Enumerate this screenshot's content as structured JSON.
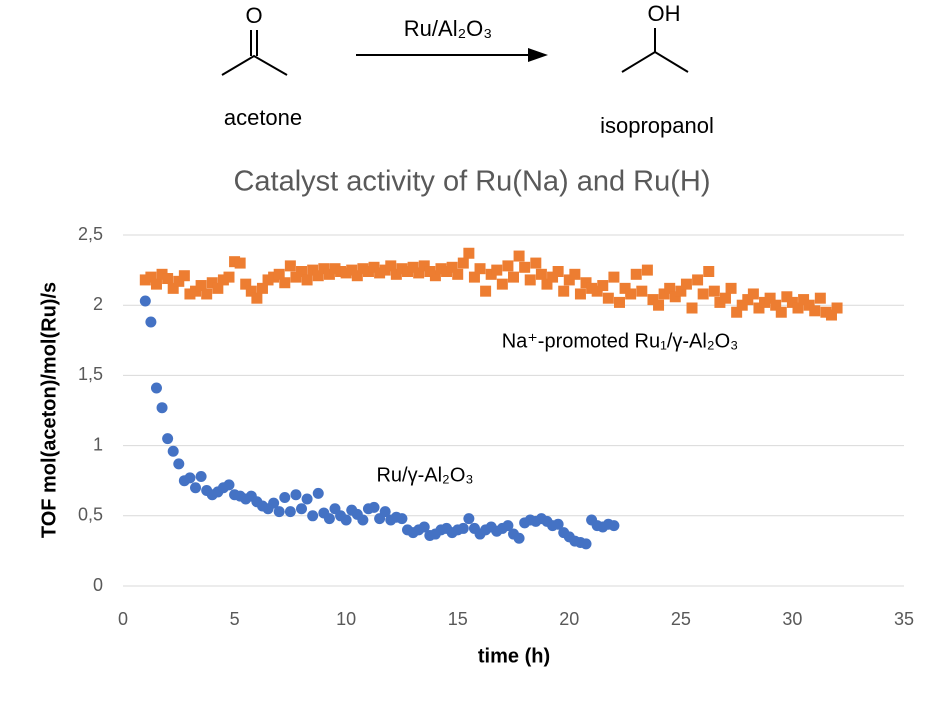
{
  "scheme": {
    "reactant_atom": "O",
    "reactant": "acetone",
    "catalyst": "Ru/Al₂O₃",
    "product_atom": "OH",
    "product": "isopropanol"
  },
  "chart_data": {
    "type": "scatter",
    "title": "Catalyst activity of Ru(Na) and Ru(H)",
    "x_label": "time (h)",
    "y_label": "TOF mol(aceton)/mol(Ru)/s",
    "xlim": [
      0,
      35
    ],
    "xticks": [
      0,
      5,
      10,
      15,
      20,
      25,
      30,
      35
    ],
    "ylim": [
      0,
      2.5
    ],
    "yticks": [
      0,
      {
        "value": 0.5,
        "label": "0,5"
      },
      1,
      {
        "value": 1.5,
        "label": "1,5"
      },
      2,
      {
        "value": 2.5,
        "label": "2,5"
      }
    ],
    "grid": true,
    "series": [
      {
        "name": "Na⁺-promoted  Ru₁/γ-Al₂O₃",
        "color": "#ed7d31",
        "marker": "square",
        "x": [
          1,
          1.25,
          1.5,
          1.75,
          2,
          2.25,
          2.5,
          2.75,
          3,
          3.25,
          3.5,
          3.75,
          4,
          4.25,
          4.5,
          4.75,
          5,
          5.25,
          5.5,
          5.75,
          6,
          6.25,
          6.5,
          6.75,
          7,
          7.25,
          7.5,
          7.75,
          8,
          8.25,
          8.5,
          8.75,
          9,
          9.25,
          9.5,
          9.75,
          10,
          10.25,
          10.5,
          10.75,
          11,
          11.25,
          11.5,
          11.75,
          12,
          12.25,
          12.5,
          12.75,
          13,
          13.25,
          13.5,
          13.75,
          14,
          14.25,
          14.5,
          14.75,
          15,
          15.25,
          15.5,
          15.75,
          16,
          16.25,
          16.5,
          16.75,
          17,
          17.25,
          17.5,
          17.75,
          18,
          18.25,
          18.5,
          18.75,
          19,
          19.25,
          19.5,
          19.75,
          20,
          20.25,
          20.5,
          20.75,
          21,
          21.25,
          21.5,
          21.75,
          22,
          22.25,
          22.5,
          22.75,
          23,
          23.25,
          23.5,
          23.75,
          24,
          24.25,
          24.5,
          24.75,
          25,
          25.25,
          25.5,
          25.75,
          26,
          26.25,
          26.5,
          26.75,
          27,
          27.25,
          27.5,
          27.75,
          28,
          28.25,
          28.5,
          28.75,
          29,
          29.25,
          29.5,
          29.75,
          30,
          30.25,
          30.5,
          30.75,
          31,
          31.25,
          31.5,
          31.75,
          32
        ],
        "values": [
          2.18,
          2.2,
          2.15,
          2.22,
          2.19,
          2.12,
          2.17,
          2.21,
          2.08,
          2.1,
          2.14,
          2.08,
          2.16,
          2.12,
          2.18,
          2.2,
          2.31,
          2.3,
          2.15,
          2.1,
          2.05,
          2.12,
          2.18,
          2.2,
          2.22,
          2.16,
          2.28,
          2.2,
          2.24,
          2.18,
          2.25,
          2.21,
          2.26,
          2.22,
          2.26,
          2.24,
          2.23,
          2.25,
          2.21,
          2.26,
          2.24,
          2.27,
          2.23,
          2.25,
          2.28,
          2.22,
          2.26,
          2.24,
          2.27,
          2.23,
          2.28,
          2.24,
          2.21,
          2.26,
          2.24,
          2.27,
          2.22,
          2.3,
          2.37,
          2.2,
          2.26,
          2.1,
          2.22,
          2.25,
          2.15,
          2.28,
          2.2,
          2.35,
          2.27,
          2.18,
          2.3,
          2.22,
          2.15,
          2.2,
          2.24,
          2.1,
          2.18,
          2.22,
          2.08,
          2.16,
          2.12,
          2.1,
          2.14,
          2.05,
          2.2,
          2.02,
          2.12,
          2.08,
          2.22,
          2.1,
          2.25,
          2.04,
          2,
          2.08,
          2.12,
          2.06,
          2.1,
          2.15,
          1.98,
          2.18,
          2.08,
          2.24,
          2.1,
          2.02,
          2.05,
          2.12,
          1.95,
          2,
          2.04,
          2.08,
          1.98,
          2.02,
          2.05,
          2,
          1.95,
          2.06,
          2.02,
          1.98,
          2.04,
          2,
          1.96,
          2.05,
          1.95,
          1.93,
          1.98
        ]
      },
      {
        "name": "Ru/γ-Al₂O₃",
        "color": "#4472c4",
        "marker": "circle",
        "x": [
          1,
          1.25,
          1.5,
          1.75,
          2,
          2.25,
          2.5,
          2.75,
          3,
          3.25,
          3.5,
          3.75,
          4,
          4.25,
          4.5,
          4.75,
          5,
          5.25,
          5.5,
          5.75,
          6,
          6.25,
          6.5,
          6.75,
          7,
          7.25,
          7.5,
          7.75,
          8,
          8.25,
          8.5,
          8.75,
          9,
          9.25,
          9.5,
          9.75,
          10,
          10.25,
          10.5,
          10.75,
          11,
          11.25,
          11.5,
          11.75,
          12,
          12.25,
          12.5,
          12.75,
          13,
          13.25,
          13.5,
          13.75,
          14,
          14.25,
          14.5,
          14.75,
          15,
          15.25,
          15.5,
          15.75,
          16,
          16.25,
          16.5,
          16.75,
          17,
          17.25,
          17.5,
          17.75,
          18,
          18.25,
          18.5,
          18.75,
          19,
          19.25,
          19.5,
          19.75,
          20,
          20.25,
          20.5,
          20.75,
          21,
          21.25,
          21.5,
          21.75,
          22
        ],
        "values": [
          2.03,
          1.88,
          1.41,
          1.27,
          1.05,
          0.96,
          0.87,
          0.75,
          0.77,
          0.7,
          0.78,
          0.68,
          0.65,
          0.67,
          0.7,
          0.72,
          0.65,
          0.64,
          0.62,
          0.64,
          0.6,
          0.57,
          0.55,
          0.59,
          0.53,
          0.63,
          0.53,
          0.65,
          0.55,
          0.62,
          0.5,
          0.66,
          0.52,
          0.48,
          0.55,
          0.5,
          0.47,
          0.54,
          0.51,
          0.47,
          0.55,
          0.56,
          0.48,
          0.53,
          0.47,
          0.49,
          0.48,
          0.4,
          0.38,
          0.4,
          0.42,
          0.36,
          0.37,
          0.4,
          0.41,
          0.38,
          0.4,
          0.41,
          0.48,
          0.41,
          0.37,
          0.4,
          0.42,
          0.39,
          0.41,
          0.43,
          0.37,
          0.34,
          0.45,
          0.47,
          0.46,
          0.48,
          0.46,
          0.43,
          0.44,
          0.38,
          0.35,
          0.32,
          0.31,
          0.3,
          0.47,
          0.43,
          0.42,
          0.44,
          0.43
        ]
      }
    ]
  }
}
